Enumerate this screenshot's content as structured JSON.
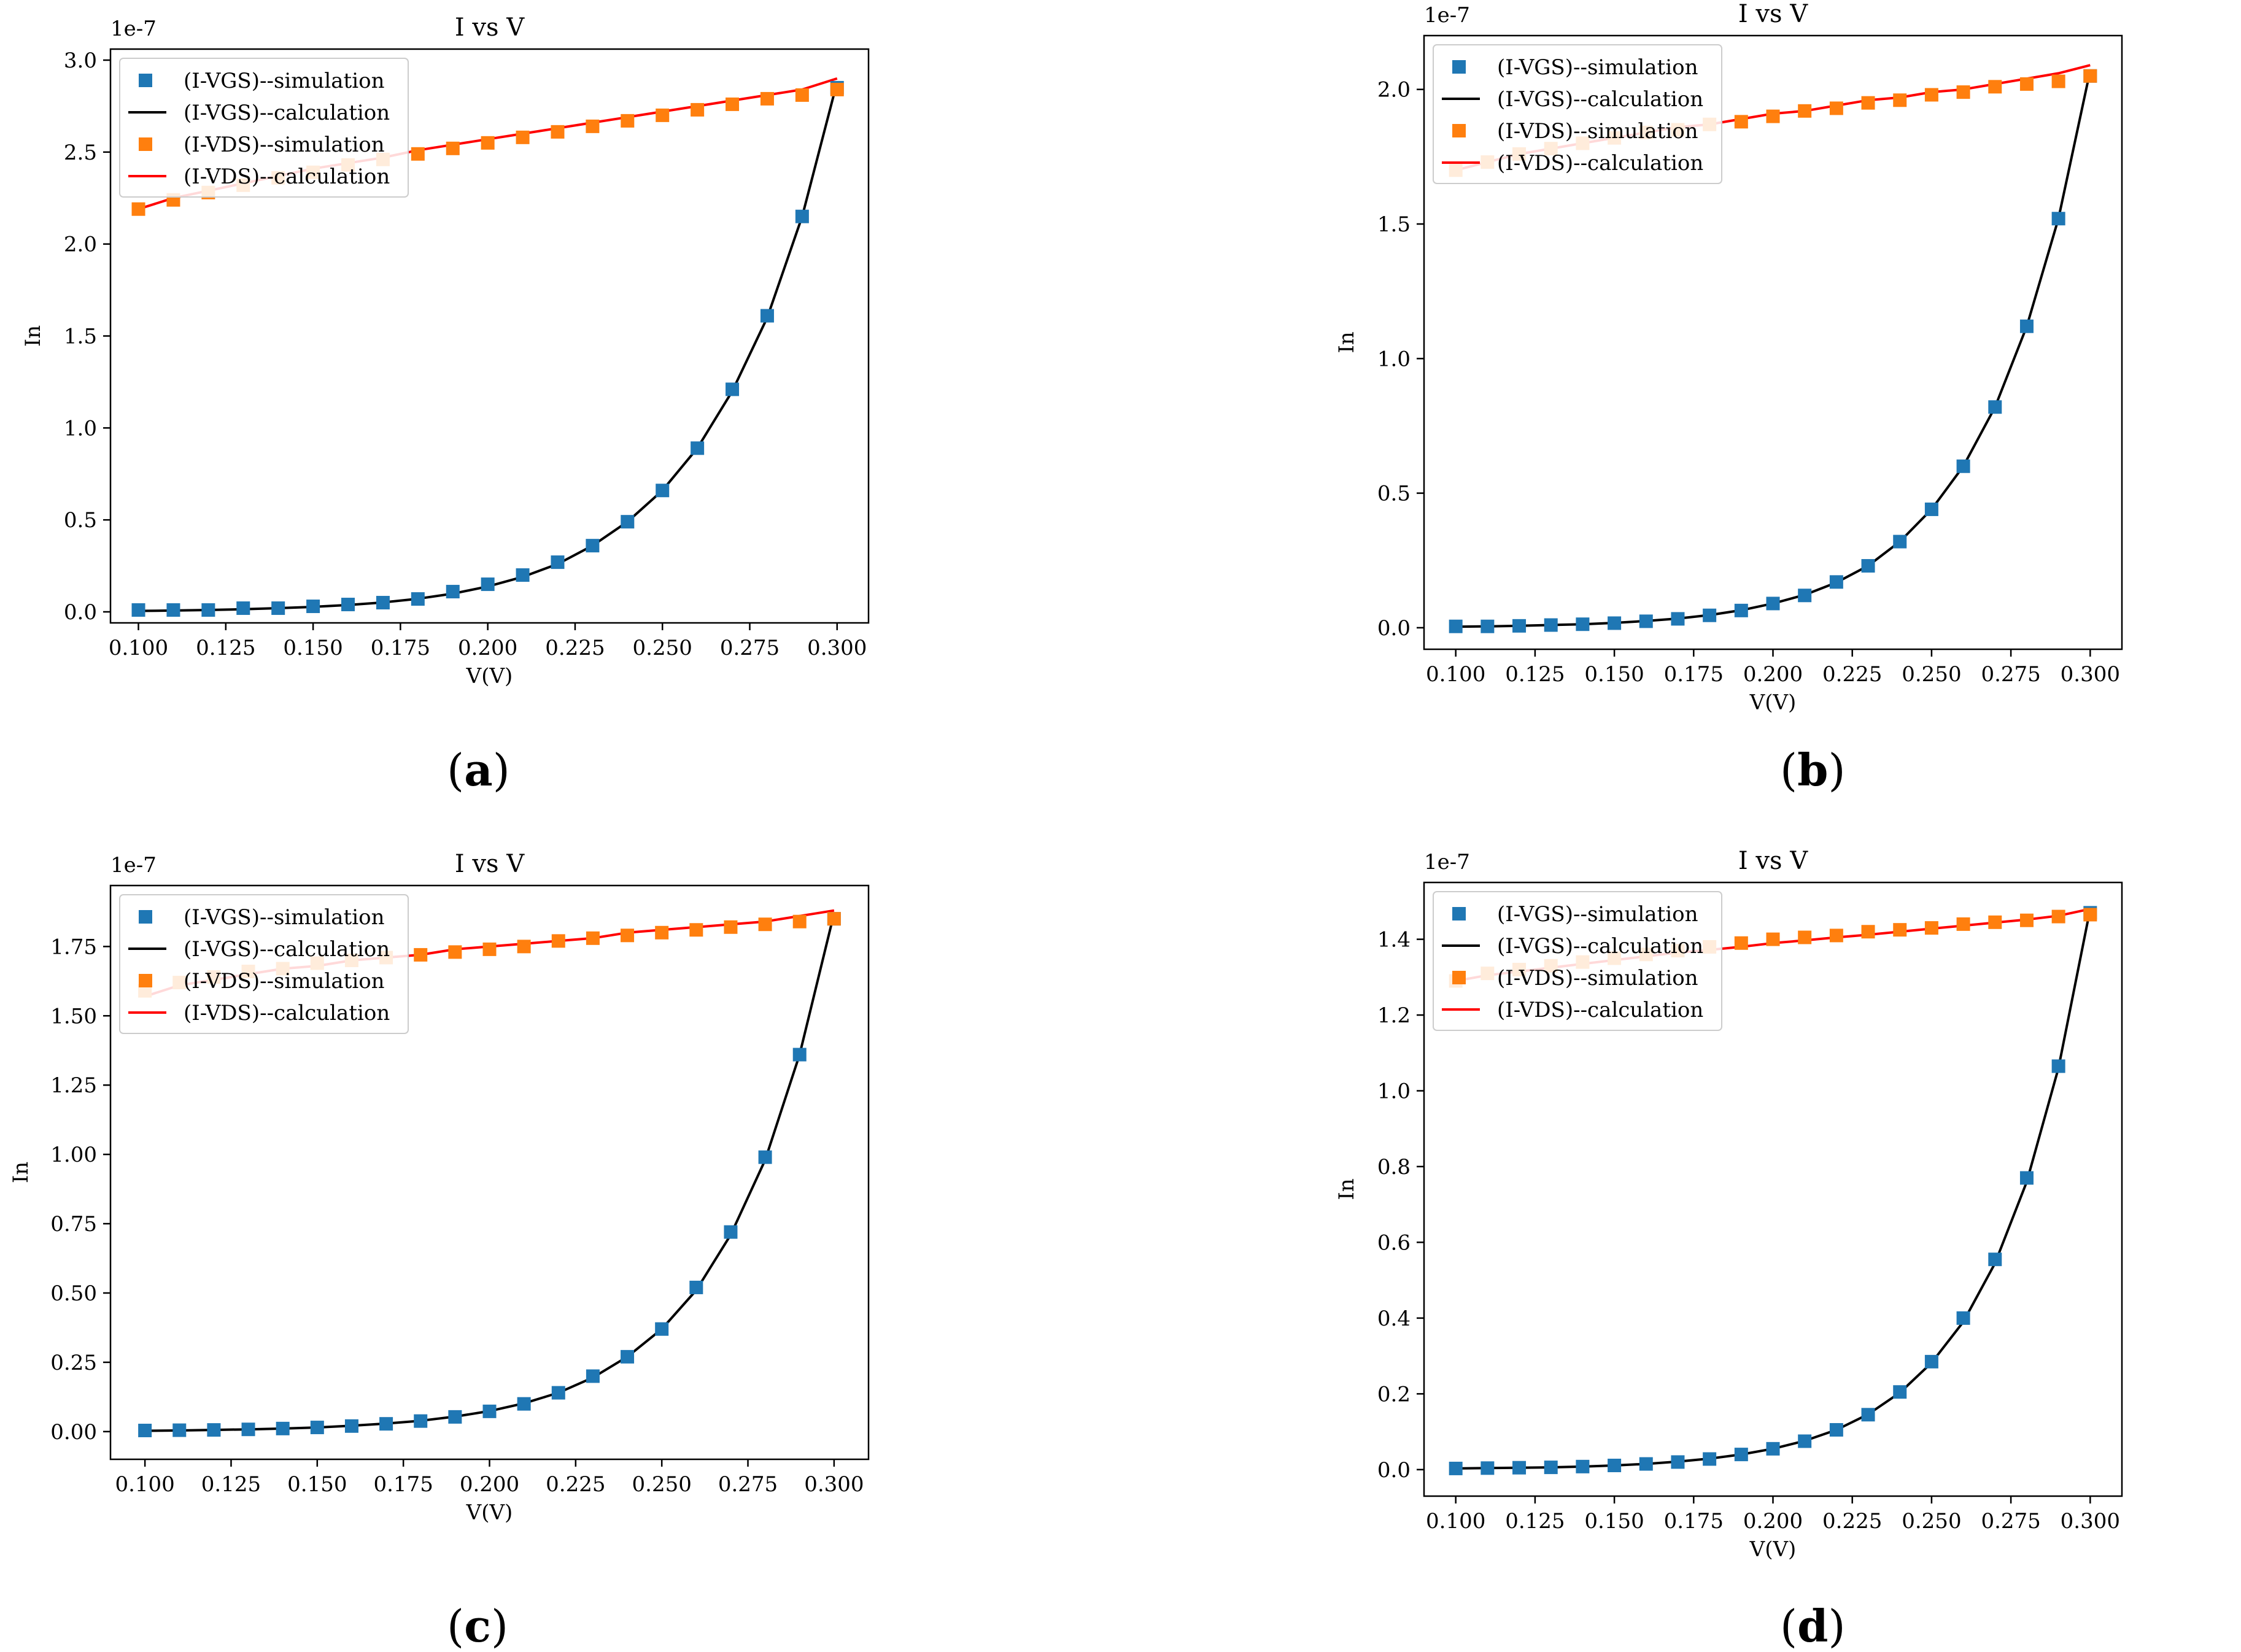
{
  "figure": {
    "colors": {
      "vgs_sim": "#1f77b4",
      "vgs_calc": "#000000",
      "vds_sim": "#ff7f0e",
      "vds_calc": "#ff0000"
    }
  },
  "chart_data": [
    {
      "id": "a",
      "caption": "a",
      "type": "line",
      "title": "I vs V",
      "xlabel": "V(V)",
      "ylabel": "In",
      "offset_text": "1e-7",
      "xlim": [
        0.092,
        0.309
      ],
      "ylim": [
        -0.06,
        3.06
      ],
      "xticks": [
        0.1,
        0.125,
        0.15,
        0.175,
        0.2,
        0.225,
        0.25,
        0.275,
        0.3
      ],
      "xtick_labels": [
        "0.100",
        "0.125",
        "0.150",
        "0.175",
        "0.200",
        "0.225",
        "0.250",
        "0.275",
        "0.300"
      ],
      "yticks": [
        0,
        0.5,
        1.0,
        1.5,
        2.0,
        2.5,
        3.0
      ],
      "ytick_labels": [
        "0.0",
        "0.5",
        "1.0",
        "1.5",
        "2.0",
        "2.5",
        "3.0"
      ],
      "legend": {
        "position": "upper-left",
        "entries": [
          "(I-VGS)--simulation",
          "(I-VGS)--calculation",
          "(I-VDS)--simulation",
          "(I-VDS)--calculation"
        ]
      },
      "x": [
        0.1,
        0.11,
        0.12,
        0.13,
        0.14,
        0.15,
        0.16,
        0.17,
        0.18,
        0.19,
        0.2,
        0.21,
        0.22,
        0.23,
        0.24,
        0.25,
        0.26,
        0.27,
        0.28,
        0.29,
        0.3
      ],
      "series": [
        {
          "name": "(I-VGS)--simulation",
          "kind": "scatter",
          "color": "#1f77b4",
          "values": [
            0.01,
            0.01,
            0.01,
            0.02,
            0.02,
            0.03,
            0.04,
            0.05,
            0.07,
            0.11,
            0.15,
            0.2,
            0.27,
            0.36,
            0.49,
            0.66,
            0.89,
            1.21,
            1.61,
            2.15,
            2.85
          ]
        },
        {
          "name": "(I-VGS)--calculation",
          "kind": "line",
          "color": "#000000",
          "values": [
            0.005,
            0.007,
            0.01,
            0.014,
            0.02,
            0.027,
            0.037,
            0.051,
            0.071,
            0.099,
            0.138,
            0.19,
            0.26,
            0.36,
            0.49,
            0.66,
            0.89,
            1.2,
            1.6,
            2.15,
            2.88
          ]
        },
        {
          "name": "(I-VDS)--simulation",
          "kind": "scatter",
          "color": "#ff7f0e",
          "values": [
            2.19,
            2.24,
            2.28,
            2.32,
            2.36,
            2.39,
            2.43,
            2.46,
            2.49,
            2.52,
            2.55,
            2.58,
            2.61,
            2.64,
            2.67,
            2.7,
            2.73,
            2.76,
            2.79,
            2.81,
            2.84
          ]
        },
        {
          "name": "(I-VDS)--calculation",
          "kind": "line",
          "color": "#ff0000",
          "values": [
            2.19,
            2.25,
            2.29,
            2.33,
            2.37,
            2.41,
            2.44,
            2.47,
            2.51,
            2.54,
            2.57,
            2.6,
            2.63,
            2.66,
            2.69,
            2.72,
            2.75,
            2.78,
            2.81,
            2.84,
            2.9
          ]
        }
      ]
    },
    {
      "id": "b",
      "caption": "b",
      "type": "line",
      "title": "I vs V",
      "xlabel": "V(V)",
      "ylabel": "In",
      "offset_text": "1e-7",
      "xlim": [
        0.09,
        0.31
      ],
      "ylim": [
        -0.08,
        2.2
      ],
      "xticks": [
        0.1,
        0.125,
        0.15,
        0.175,
        0.2,
        0.225,
        0.25,
        0.275,
        0.3
      ],
      "xtick_labels": [
        "0.100",
        "0.125",
        "0.150",
        "0.175",
        "0.200",
        "0.225",
        "0.250",
        "0.275",
        "0.300"
      ],
      "yticks": [
        0,
        0.5,
        1.0,
        1.5,
        2.0
      ],
      "ytick_labels": [
        "0.0",
        "0.5",
        "1.0",
        "1.5",
        "2.0"
      ],
      "legend": {
        "position": "upper-left",
        "entries": [
          "(I-VGS)--simulation",
          "(I-VGS)--calculation",
          "(I-VDS)--simulation",
          "(I-VDS)--calculation"
        ]
      },
      "x": [
        0.1,
        0.11,
        0.12,
        0.13,
        0.14,
        0.15,
        0.16,
        0.17,
        0.18,
        0.19,
        0.2,
        0.21,
        0.22,
        0.23,
        0.24,
        0.25,
        0.26,
        0.27,
        0.28,
        0.29,
        0.3
      ],
      "series": [
        {
          "name": "(I-VGS)--simulation",
          "kind": "scatter",
          "color": "#1f77b4",
          "values": [
            0.005,
            0.005,
            0.007,
            0.01,
            0.013,
            0.017,
            0.024,
            0.033,
            0.046,
            0.064,
            0.09,
            0.12,
            0.17,
            0.23,
            0.32,
            0.44,
            0.6,
            0.82,
            1.12,
            1.52,
            2.05
          ]
        },
        {
          "name": "(I-VGS)--calculation",
          "kind": "line",
          "color": "#000000",
          "values": [
            0.004,
            0.005,
            0.007,
            0.01,
            0.013,
            0.018,
            0.025,
            0.034,
            0.047,
            0.065,
            0.09,
            0.122,
            0.168,
            0.23,
            0.32,
            0.44,
            0.6,
            0.82,
            1.12,
            1.52,
            2.07
          ]
        },
        {
          "name": "(I-VDS)--simulation",
          "kind": "scatter",
          "color": "#ff7f0e",
          "values": [
            1.7,
            1.73,
            1.76,
            1.78,
            1.8,
            1.82,
            1.84,
            1.85,
            1.87,
            1.88,
            1.9,
            1.92,
            1.93,
            1.95,
            1.96,
            1.98,
            1.99,
            2.01,
            2.02,
            2.03,
            2.05
          ]
        },
        {
          "name": "(I-VDS)--calculation",
          "kind": "line",
          "color": "#ff0000",
          "values": [
            1.7,
            1.73,
            1.76,
            1.78,
            1.8,
            1.82,
            1.84,
            1.86,
            1.87,
            1.89,
            1.91,
            1.92,
            1.94,
            1.96,
            1.97,
            1.99,
            2.0,
            2.02,
            2.04,
            2.06,
            2.09
          ]
        }
      ]
    },
    {
      "id": "c",
      "caption": "c",
      "type": "line",
      "title": "I vs V",
      "xlabel": "V(V)",
      "ylabel": "In",
      "offset_text": "1e-7",
      "xlim": [
        0.09,
        0.31
      ],
      "ylim": [
        -0.1,
        1.97
      ],
      "xticks": [
        0.1,
        0.125,
        0.15,
        0.175,
        0.2,
        0.225,
        0.25,
        0.275,
        0.3
      ],
      "xtick_labels": [
        "0.100",
        "0.125",
        "0.150",
        "0.175",
        "0.200",
        "0.225",
        "0.250",
        "0.275",
        "0.300"
      ],
      "yticks": [
        0,
        0.25,
        0.5,
        0.75,
        1.0,
        1.25,
        1.5,
        1.75
      ],
      "ytick_labels": [
        "0.00",
        "0.25",
        "0.50",
        "0.75",
        "1.00",
        "1.25",
        "1.50",
        "1.75"
      ],
      "legend": {
        "position": "upper-left",
        "entries": [
          "(I-VGS)--simulation",
          "(I-VGS)--calculation",
          "(I-VDS)--simulation",
          "(I-VDS)--calculation"
        ]
      },
      "x": [
        0.1,
        0.11,
        0.12,
        0.13,
        0.14,
        0.15,
        0.16,
        0.17,
        0.18,
        0.19,
        0.2,
        0.21,
        0.22,
        0.23,
        0.24,
        0.25,
        0.26,
        0.27,
        0.28,
        0.29,
        0.3
      ],
      "series": [
        {
          "name": "(I-VGS)--simulation",
          "kind": "scatter",
          "color": "#1f77b4",
          "values": [
            0.004,
            0.005,
            0.006,
            0.008,
            0.011,
            0.015,
            0.02,
            0.028,
            0.038,
            0.053,
            0.073,
            0.1,
            0.14,
            0.2,
            0.27,
            0.37,
            0.52,
            0.72,
            0.99,
            1.36,
            1.85
          ]
        },
        {
          "name": "(I-VGS)--calculation",
          "kind": "line",
          "color": "#000000",
          "values": [
            0.003,
            0.004,
            0.006,
            0.008,
            0.011,
            0.015,
            0.021,
            0.029,
            0.039,
            0.054,
            0.074,
            0.102,
            0.14,
            0.195,
            0.27,
            0.37,
            0.51,
            0.71,
            0.98,
            1.36,
            1.87
          ]
        },
        {
          "name": "(I-VDS)--simulation",
          "kind": "scatter",
          "color": "#ff7f0e",
          "values": [
            1.59,
            1.62,
            1.64,
            1.66,
            1.67,
            1.69,
            1.7,
            1.71,
            1.72,
            1.73,
            1.74,
            1.75,
            1.77,
            1.78,
            1.79,
            1.8,
            1.81,
            1.82,
            1.83,
            1.84,
            1.85
          ]
        },
        {
          "name": "(I-VDS)--calculation",
          "kind": "line",
          "color": "#ff0000",
          "values": [
            1.57,
            1.61,
            1.63,
            1.65,
            1.67,
            1.68,
            1.7,
            1.71,
            1.72,
            1.74,
            1.75,
            1.76,
            1.77,
            1.78,
            1.8,
            1.81,
            1.82,
            1.83,
            1.84,
            1.86,
            1.88
          ]
        }
      ]
    },
    {
      "id": "d",
      "caption": "d",
      "type": "line",
      "title": "I vs V",
      "xlabel": "V(V)",
      "ylabel": "In",
      "offset_text": "1e-7",
      "xlim": [
        0.09,
        0.31
      ],
      "ylim": [
        -0.07,
        1.55
      ],
      "xticks": [
        0.1,
        0.125,
        0.15,
        0.175,
        0.2,
        0.225,
        0.25,
        0.275,
        0.3
      ],
      "xtick_labels": [
        "0.100",
        "0.125",
        "0.150",
        "0.175",
        "0.200",
        "0.225",
        "0.250",
        "0.275",
        "0.300"
      ],
      "yticks": [
        0,
        0.2,
        0.4,
        0.6,
        0.8,
        1.0,
        1.2,
        1.4
      ],
      "ytick_labels": [
        "0.0",
        "0.2",
        "0.4",
        "0.6",
        "0.8",
        "1.0",
        "1.2",
        "1.4"
      ],
      "legend": {
        "position": "upper-left",
        "entries": [
          "(I-VGS)--simulation",
          "(I-VGS)--calculation",
          "(I-VDS)--simulation",
          "(I-VDS)--calculation"
        ]
      },
      "x": [
        0.1,
        0.11,
        0.12,
        0.13,
        0.14,
        0.15,
        0.16,
        0.17,
        0.18,
        0.19,
        0.2,
        0.21,
        0.22,
        0.23,
        0.24,
        0.25,
        0.26,
        0.27,
        0.28,
        0.29,
        0.3
      ],
      "series": [
        {
          "name": "(I-VGS)--simulation",
          "kind": "scatter",
          "color": "#1f77b4",
          "values": [
            0.003,
            0.004,
            0.005,
            0.006,
            0.008,
            0.011,
            0.015,
            0.02,
            0.028,
            0.04,
            0.055,
            0.075,
            0.105,
            0.145,
            0.205,
            0.285,
            0.4,
            0.555,
            0.77,
            1.065,
            1.47
          ]
        },
        {
          "name": "(I-VGS)--calculation",
          "kind": "line",
          "color": "#000000",
          "values": [
            0.003,
            0.004,
            0.005,
            0.006,
            0.008,
            0.011,
            0.015,
            0.021,
            0.029,
            0.04,
            0.055,
            0.076,
            0.105,
            0.146,
            0.203,
            0.282,
            0.39,
            0.545,
            0.76,
            1.06,
            1.48
          ]
        },
        {
          "name": "(I-VDS)--simulation",
          "kind": "scatter",
          "color": "#ff7f0e",
          "values": [
            1.29,
            1.31,
            1.32,
            1.33,
            1.34,
            1.35,
            1.36,
            1.37,
            1.38,
            1.39,
            1.4,
            1.405,
            1.41,
            1.42,
            1.425,
            1.43,
            1.44,
            1.445,
            1.45,
            1.46,
            1.465
          ]
        },
        {
          "name": "(I-VDS)--calculation",
          "kind": "line",
          "color": "#ff0000",
          "values": [
            1.29,
            1.305,
            1.315,
            1.325,
            1.335,
            1.345,
            1.355,
            1.365,
            1.372,
            1.38,
            1.39,
            1.397,
            1.405,
            1.412,
            1.42,
            1.428,
            1.436,
            1.444,
            1.452,
            1.462,
            1.48
          ]
        }
      ]
    }
  ]
}
